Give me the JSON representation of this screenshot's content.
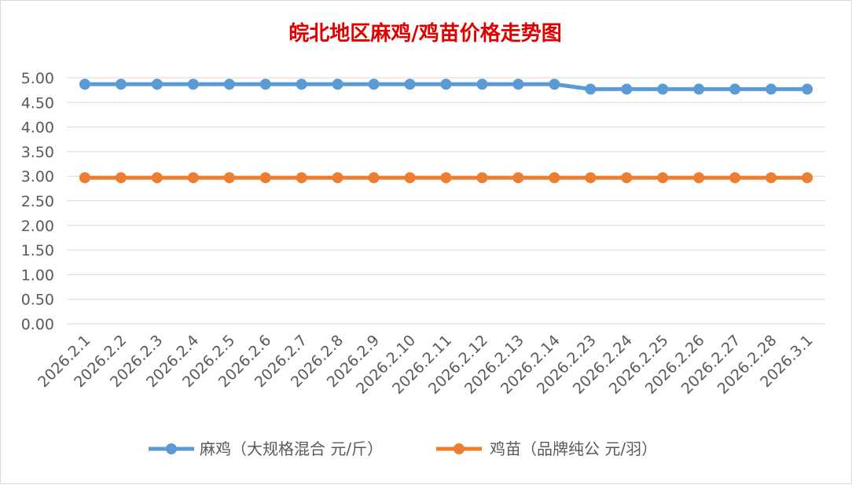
{
  "chart_data": {
    "type": "line",
    "title": "皖北地区麻鸡/鸡苗价格走势图",
    "categories": [
      "2026.2.1",
      "2026.2.2",
      "2026.2.3",
      "2026.2.4",
      "2026.2.5",
      "2026.2.6",
      "2026.2.7",
      "2026.2.8",
      "2026.2.9",
      "2026.2.10",
      "2026.2.11",
      "2026.2.12",
      "2026.2.13",
      "2026.2.14",
      "2026.2.23",
      "2026.2.24",
      "2026.2.25",
      "2026.2.26",
      "2026.2.27",
      "2026.2.28",
      "2026.3.1"
    ],
    "series": [
      {
        "name": "麻鸡（大规格混合 元/斤）",
        "color": "#5b9bd5",
        "values": [
          4.87,
          4.87,
          4.87,
          4.87,
          4.87,
          4.87,
          4.87,
          4.87,
          4.87,
          4.87,
          4.87,
          4.87,
          4.87,
          4.87,
          4.77,
          4.77,
          4.77,
          4.77,
          4.77,
          4.77,
          4.77
        ]
      },
      {
        "name": "鸡苗（品牌纯公 元/羽）",
        "color": "#ed7d31",
        "values": [
          2.97,
          2.97,
          2.97,
          2.97,
          2.97,
          2.97,
          2.97,
          2.97,
          2.97,
          2.97,
          2.97,
          2.97,
          2.97,
          2.97,
          2.97,
          2.97,
          2.97,
          2.97,
          2.97,
          2.97,
          2.97
        ]
      }
    ],
    "ylim": [
      0,
      5
    ],
    "yticks": [
      "0.00",
      "0.50",
      "1.00",
      "1.50",
      "2.00",
      "2.50",
      "3.00",
      "3.50",
      "4.00",
      "4.50",
      "5.00"
    ],
    "grid": true,
    "legend": "bottom"
  }
}
